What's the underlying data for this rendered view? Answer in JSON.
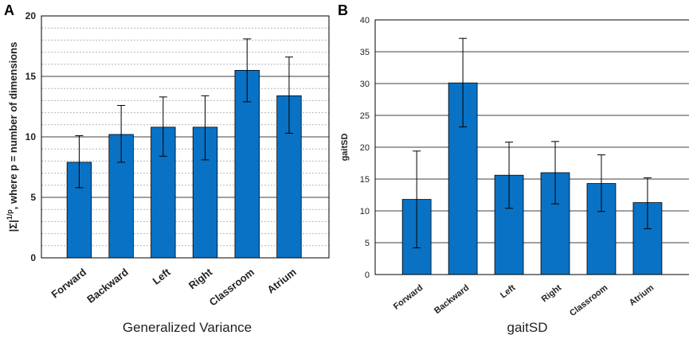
{
  "colors": {
    "bar": "#0a72c4",
    "bar_edge": "#000000",
    "grid": "#000000",
    "minor_grid": "#b4b4b4"
  },
  "chart_data": [
    {
      "panel": "A",
      "type": "bar",
      "title": "",
      "xlabel": "Generalized Variance",
      "ylabel_prefix": "|Σ|",
      "ylabel_sup": "1/p",
      "ylabel_suffix": ", where p = number of dimensions",
      "categories": [
        "Forward",
        "Backward",
        "Left",
        "Right",
        "Classroom",
        "Atrium"
      ],
      "values": [
        7.9,
        10.2,
        10.8,
        10.8,
        15.5,
        13.4
      ],
      "error_low": [
        5.8,
        7.9,
        8.4,
        8.1,
        12.9,
        10.3
      ],
      "error_high": [
        10.1,
        12.6,
        13.3,
        13.4,
        18.1,
        16.6
      ],
      "ylim": [
        0,
        20
      ],
      "yticks": [
        0,
        5,
        10,
        15,
        20
      ],
      "grid": "major solid, minor dotted"
    },
    {
      "panel": "B",
      "type": "bar",
      "title": "",
      "xlabel": "gaitSD",
      "ylabel": "gaitSD",
      "categories": [
        "Forward",
        "Backward",
        "Left",
        "Right",
        "Classroom",
        "Atrium"
      ],
      "values": [
        11.8,
        30.1,
        15.6,
        16.0,
        14.3,
        11.3
      ],
      "error_low": [
        4.2,
        23.2,
        10.4,
        11.1,
        9.9,
        7.2
      ],
      "error_high": [
        19.4,
        37.1,
        20.8,
        20.9,
        18.8,
        15.2
      ],
      "ylim": [
        0,
        40
      ],
      "yticks": [
        0,
        5,
        10,
        15,
        20,
        25,
        30,
        35,
        40
      ],
      "grid": "major solid"
    }
  ]
}
